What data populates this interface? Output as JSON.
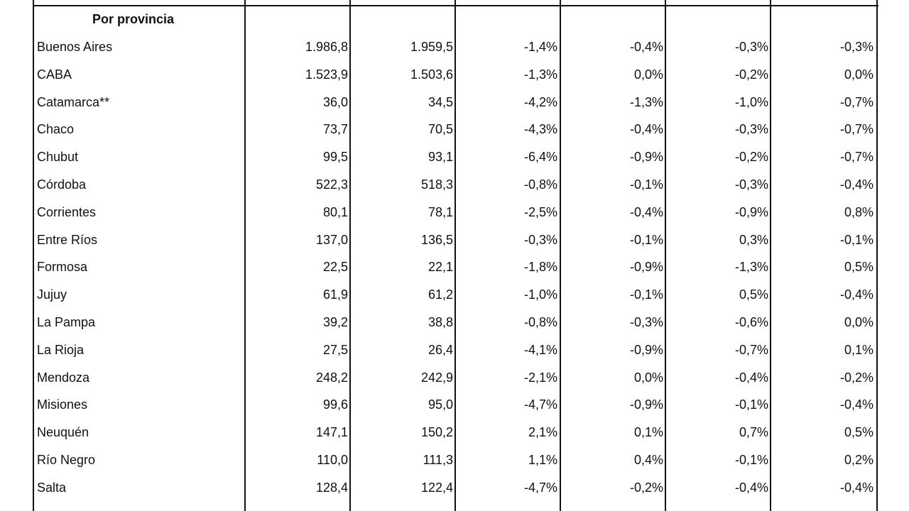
{
  "table": {
    "title": "Por provincia",
    "rows": [
      [
        "Buenos Aires",
        "1.986,8",
        "1.959,5",
        "-1,4%",
        "-0,4%",
        "-0,3%",
        "-0,3%"
      ],
      [
        "CABA",
        "1.523,9",
        "1.503,6",
        "-1,3%",
        "0,0%",
        "-0,2%",
        "0,0%"
      ],
      [
        "Catamarca**",
        "36,0",
        "34,5",
        "-4,2%",
        "-1,3%",
        "-1,0%",
        "-0,7%"
      ],
      [
        "Chaco",
        "73,7",
        "70,5",
        "-4,3%",
        "-0,4%",
        "-0,3%",
        "-0,7%"
      ],
      [
        "Chubut",
        "99,5",
        "93,1",
        "-6,4%",
        "-0,9%",
        "-0,2%",
        "-0,7%"
      ],
      [
        "Córdoba",
        "522,3",
        "518,3",
        "-0,8%",
        "-0,1%",
        "-0,3%",
        "-0,4%"
      ],
      [
        "Corrientes",
        "80,1",
        "78,1",
        "-2,5%",
        "-0,4%",
        "-0,9%",
        "0,8%"
      ],
      [
        "Entre Ríos",
        "137,0",
        "136,5",
        "-0,3%",
        "-0,1%",
        "0,3%",
        "-0,1%"
      ],
      [
        "Formosa",
        "22,5",
        "22,1",
        "-1,8%",
        "-0,9%",
        "-1,3%",
        "0,5%"
      ],
      [
        "Jujuy",
        "61,9",
        "61,2",
        "-1,0%",
        "-0,1%",
        "0,5%",
        "-0,4%"
      ],
      [
        "La Pampa",
        "39,2",
        "38,8",
        "-0,8%",
        "-0,3%",
        "-0,6%",
        "0,0%"
      ],
      [
        "La Rioja",
        "27,5",
        "26,4",
        "-4,1%",
        "-0,9%",
        "-0,7%",
        "0,1%"
      ],
      [
        "Mendoza",
        "248,2",
        "242,9",
        "-2,1%",
        "0,0%",
        "-0,4%",
        "-0,2%"
      ],
      [
        "Misiones",
        "99,6",
        "95,0",
        "-4,7%",
        "-0,9%",
        "-0,1%",
        "-0,4%"
      ],
      [
        "Neuquén",
        "147,1",
        "150,2",
        "2,1%",
        "0,1%",
        "0,7%",
        "0,5%"
      ],
      [
        "Río Negro",
        "110,0",
        "111,3",
        "1,1%",
        "0,4%",
        "-0,1%",
        "0,2%"
      ],
      [
        "Salta",
        "128,4",
        "122,4",
        "-4,7%",
        "-0,2%",
        "-0,4%",
        "-0,4%"
      ]
    ]
  }
}
